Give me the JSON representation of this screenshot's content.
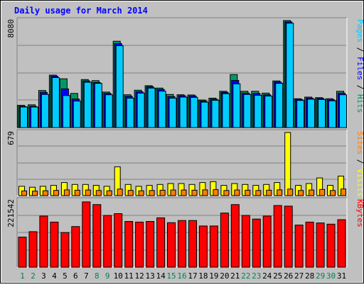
{
  "chart_data": {
    "type": "bar",
    "title": "Daily usage for March 2014",
    "categories": [
      "1",
      "2",
      "3",
      "4",
      "5",
      "6",
      "7",
      "8",
      "9",
      "10",
      "11",
      "12",
      "13",
      "14",
      "15",
      "16",
      "17",
      "18",
      "19",
      "20",
      "21",
      "22",
      "23",
      "24",
      "25",
      "26",
      "27",
      "28",
      "29",
      "30",
      "31"
    ],
    "weekend_days": [
      "1",
      "2",
      "8",
      "9",
      "15",
      "16",
      "22",
      "23",
      "29",
      "30"
    ],
    "panels": [
      {
        "id": "hits",
        "max_label": "8080",
        "max": 8080,
        "axis_title_parts": [
          "Pages",
          "Files",
          "Hits"
        ],
        "axis_title_separator": " / ",
        "series": [
          {
            "name": "Hits",
            "color": "#009966",
            "values": [
              1680,
              1720,
              2800,
              3960,
              3680,
              2580,
              3620,
              3540,
              2680,
              6520,
              2480,
              2820,
              3160,
              2980,
              2500,
              2480,
              2460,
              2080,
              2220,
              2740,
              4000,
              2740,
              2740,
              2600,
              3520,
              8080,
              2180,
              2300,
              2260,
              2180,
              2740
            ]
          },
          {
            "name": "Files",
            "color": "#0000ff",
            "values": [
              1600,
              1600,
              2660,
              3880,
              2920,
              2160,
              3520,
              3400,
              2580,
              6340,
              2360,
              2700,
              3080,
              2880,
              2340,
              2400,
              2380,
              2000,
              2140,
              2660,
              3560,
              2600,
              2580,
              2480,
              3440,
              7980,
              2120,
              2220,
              2200,
              2100,
              2600
            ]
          },
          {
            "name": "Pages",
            "color": "#00ccff",
            "values": [
              1550,
              1550,
              2500,
              3770,
              2420,
              2000,
              3420,
              3340,
              2480,
              6180,
              2220,
              2600,
              2980,
              2750,
              2220,
              2300,
              2280,
              1920,
              2060,
              2560,
              3300,
              2500,
              2440,
              2380,
              3340,
              7880,
              2050,
              2140,
              2120,
              2020,
              2480
            ]
          }
        ]
      },
      {
        "id": "visits",
        "max_label": "679",
        "max": 679,
        "axis_title_parts": [
          "Sites",
          "Visits"
        ],
        "axis_title_separator": " / ",
        "series": [
          {
            "name": "Visits",
            "color": "#ffff00",
            "values": [
              100,
              90,
              100,
              110,
              140,
              120,
              120,
              110,
              100,
              310,
              120,
              100,
              110,
              120,
              130,
              130,
              120,
              140,
              150,
              110,
              130,
              120,
              110,
              120,
              140,
              679,
              110,
              130,
              190,
              110,
              210
            ]
          },
          {
            "name": "Sites",
            "color": "#ff8000",
            "values": [
              50,
              48,
              52,
              56,
              62,
              58,
              60,
              55,
              52,
              70,
              56,
              52,
              55,
              58,
              60,
              60,
              58,
              62,
              64,
              55,
              60,
              58,
              55,
              58,
              62,
              70,
              55,
              60,
              66,
              55,
              72
            ]
          }
        ]
      },
      {
        "id": "kbytes",
        "max_label": "221542",
        "max": 221542,
        "axis_title_parts": [
          "KBytes"
        ],
        "axis_title_separator": "",
        "series": [
          {
            "name": "KBytes",
            "color": "#ff0000",
            "values": [
              100000,
              118000,
              170000,
              150000,
              115000,
              135000,
              217000,
              208000,
              172000,
              178000,
              152000,
              150000,
              152000,
              164000,
              148000,
              155000,
              155000,
              137000,
              137000,
              180000,
              208000,
              172000,
              160000,
              170000,
              205000,
              203000,
              140000,
              150000,
              147000,
              143000,
              158000
            ]
          }
        ]
      }
    ],
    "colors": {
      "title": "#0000ff",
      "background": "#c0c0c0",
      "plot_background": "#c0c0c0",
      "gridline": "#808080",
      "tick_weekday": "#000000",
      "tick_weekend": "#00805c"
    }
  }
}
